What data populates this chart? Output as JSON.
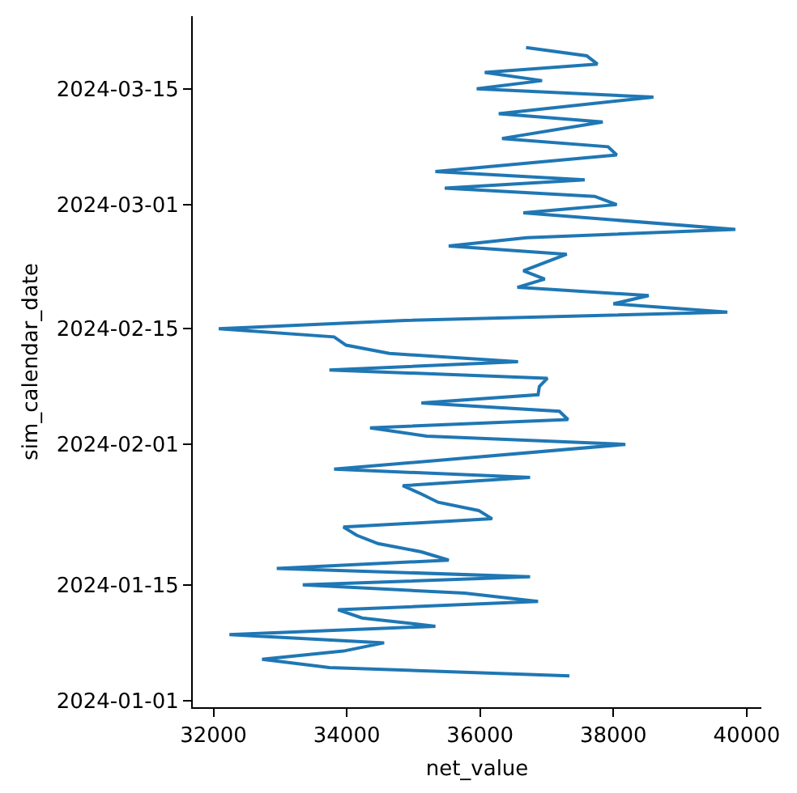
{
  "chart_data": {
    "type": "line",
    "orientation": "horizontal",
    "xlabel": "net_value",
    "ylabel": "sim_calendar_date",
    "x": [
      "2024-01-04",
      "2024-01-05",
      "2024-01-06",
      "2024-01-07",
      "2024-01-08",
      "2024-01-09",
      "2024-01-10",
      "2024-01-11",
      "2024-01-12",
      "2024-01-13",
      "2024-01-14",
      "2024-01-15",
      "2024-01-16",
      "2024-01-17",
      "2024-01-18",
      "2024-01-19",
      "2024-01-20",
      "2024-01-21",
      "2024-01-22",
      "2024-01-23",
      "2024-01-24",
      "2024-01-25",
      "2024-01-26",
      "2024-01-27",
      "2024-01-28",
      "2024-01-29",
      "2024-02-01",
      "2024-02-02",
      "2024-02-03",
      "2024-02-04",
      "2024-02-05",
      "2024-02-06",
      "2024-02-07",
      "2024-02-08",
      "2024-02-09",
      "2024-02-10",
      "2024-02-11",
      "2024-02-12",
      "2024-02-13",
      "2024-02-14",
      "2024-02-15",
      "2024-02-16",
      "2024-02-17",
      "2024-02-18",
      "2024-02-19",
      "2024-02-20",
      "2024-02-21",
      "2024-02-22",
      "2024-02-24",
      "2024-02-25",
      "2024-02-26",
      "2024-02-27",
      "2024-02-29",
      "2024-03-01",
      "2024-03-02",
      "2024-03-03",
      "2024-03-04",
      "2024-03-05",
      "2024-03-07",
      "2024-03-08",
      "2024-03-09",
      "2024-03-11",
      "2024-03-12",
      "2024-03-14",
      "2024-03-15",
      "2024-03-16",
      "2024-03-17",
      "2024-03-18",
      "2024-03-19",
      "2024-03-20"
    ],
    "series": [
      {
        "color": "#1f77b4",
        "values": [
          37340,
          33740,
          32730,
          33950,
          34560,
          32240,
          35330,
          34230,
          33870,
          36870,
          35770,
          33340,
          36750,
          32950,
          35530,
          35120,
          34470,
          34150,
          33950,
          36180,
          35980,
          35370,
          35120,
          34840,
          36750,
          33810,
          38180,
          35200,
          34350,
          37320,
          37190,
          35120,
          36870,
          36890,
          37010,
          33740,
          36570,
          34640,
          33990,
          33810,
          32080,
          34880,
          39710,
          38000,
          38530,
          36560,
          36970,
          36650,
          37300,
          35530,
          36700,
          39830,
          36650,
          38050,
          37720,
          35470,
          37570,
          35330,
          38050,
          37920,
          36330,
          37840,
          36280,
          38600,
          35950,
          36930,
          36070,
          37760,
          37600,
          36690
        ]
      }
    ],
    "xlim": [
      31690,
      40220
    ],
    "xticks": [
      32000,
      34000,
      36000,
      38000,
      40000
    ],
    "ylim": [
      "2023-12-31T05:00",
      "2024-03-23T19:00"
    ],
    "yticks": [
      "2024-01-01",
      "2024-01-15",
      "2024-02-01",
      "2024-02-15",
      "2024-03-01",
      "2024-03-15"
    ],
    "grid": false,
    "marker": "none",
    "line_style": "solid"
  }
}
